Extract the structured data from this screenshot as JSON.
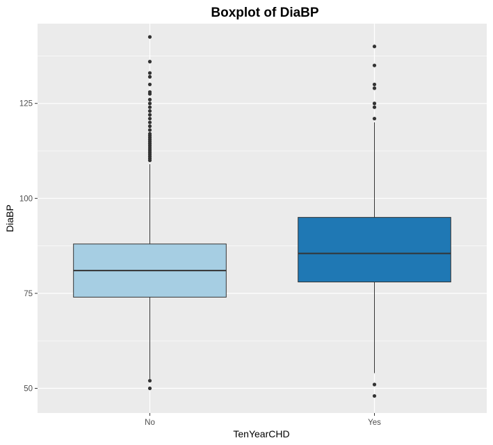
{
  "chart_data": {
    "type": "boxplot",
    "title": "Boxplot of DiaBP",
    "xlabel": "TenYearCHD",
    "ylabel": "DiaBP",
    "categories": [
      "No",
      "Yes"
    ],
    "ylim": [
      43.5,
      146
    ],
    "y_ticks": [
      50,
      75,
      100,
      125
    ],
    "y_tick_labels": [
      "50",
      "75",
      "100",
      "125"
    ],
    "grid": true,
    "legend": "none",
    "boxes": [
      {
        "category": "No",
        "color": "#a6cee3",
        "whisker_low": 52.5,
        "q1": 74,
        "median": 81,
        "q3": 88,
        "whisker_high": 109,
        "outliers": [
          50,
          52,
          110,
          110.5,
          111,
          111.5,
          112,
          112.5,
          113,
          113.5,
          114,
          114.5,
          115,
          115.5,
          116,
          116.5,
          117,
          118,
          119,
          120,
          121,
          122,
          123,
          124,
          125,
          126,
          127.5,
          128,
          130,
          132,
          133,
          136,
          142.5
        ]
      },
      {
        "category": "Yes",
        "color": "#1f78b4",
        "whisker_low": 54,
        "q1": 78,
        "median": 85.5,
        "q3": 95,
        "whisker_high": 120,
        "outliers": [
          48,
          51,
          121,
          124,
          125,
          129,
          130,
          135,
          140
        ]
      }
    ],
    "colors": {
      "panel": "#ebebeb",
      "grid": "#ffffff",
      "outline": "#333333",
      "outlier": "#333333"
    }
  }
}
